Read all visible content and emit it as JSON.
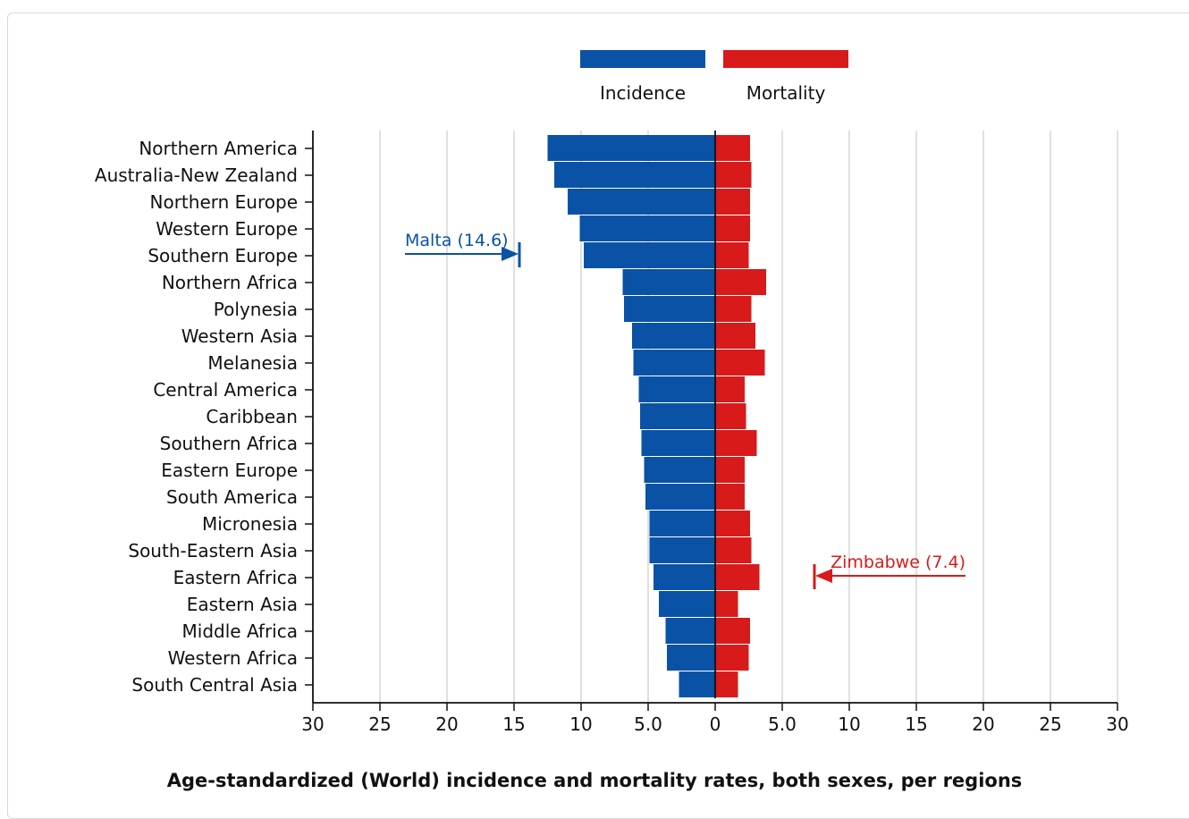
{
  "chart_data": {
    "type": "bar",
    "orientation": "horizontal-diverging",
    "title": "Age-standardized (World) incidence and mortality rates, both sexes, per regions",
    "categories": [
      "Northern America",
      "Australia-New Zealand",
      "Northern Europe",
      "Western Europe",
      "Southern Europe",
      "Northern Africa",
      "Polynesia",
      "Western Asia",
      "Melanesia",
      "Central America",
      "Caribbean",
      "Southern Africa",
      "Eastern Europe",
      "South America",
      "Micronesia",
      "South-Eastern Asia",
      "Eastern Africa",
      "Eastern Asia",
      "Middle Africa",
      "Western Africa",
      "South Central Asia"
    ],
    "series": [
      {
        "name": "Incidence",
        "color": "#0a52a5",
        "side": "left",
        "values": [
          12.5,
          12.0,
          11.0,
          10.1,
          9.8,
          6.9,
          6.8,
          6.2,
          6.1,
          5.7,
          5.6,
          5.5,
          5.3,
          5.2,
          4.9,
          4.9,
          4.6,
          4.2,
          3.7,
          3.6,
          2.7
        ]
      },
      {
        "name": "Mortality",
        "color": "#d91a1a",
        "side": "right",
        "values": [
          2.6,
          2.7,
          2.6,
          2.6,
          2.5,
          3.8,
          2.7,
          3.0,
          3.7,
          2.2,
          2.3,
          3.1,
          2.2,
          2.2,
          2.6,
          2.7,
          3.3,
          1.7,
          2.6,
          2.5,
          1.7
        ]
      }
    ],
    "x_ticks": [
      "30",
      "25",
      "20",
      "15",
      "10",
      "5.0",
      "0",
      "5.0",
      "10",
      "15",
      "20",
      "25",
      "30"
    ],
    "xlim": [
      -30,
      30
    ],
    "grid": true,
    "legend_position": "top-center",
    "annotations": [
      {
        "label": "Malta (14.6)",
        "value": 14.6,
        "side": "left",
        "color": "#0a52a5"
      },
      {
        "label": "Zimbabwe (7.4)",
        "value": 7.4,
        "side": "right",
        "color": "#d91a1a"
      }
    ]
  }
}
